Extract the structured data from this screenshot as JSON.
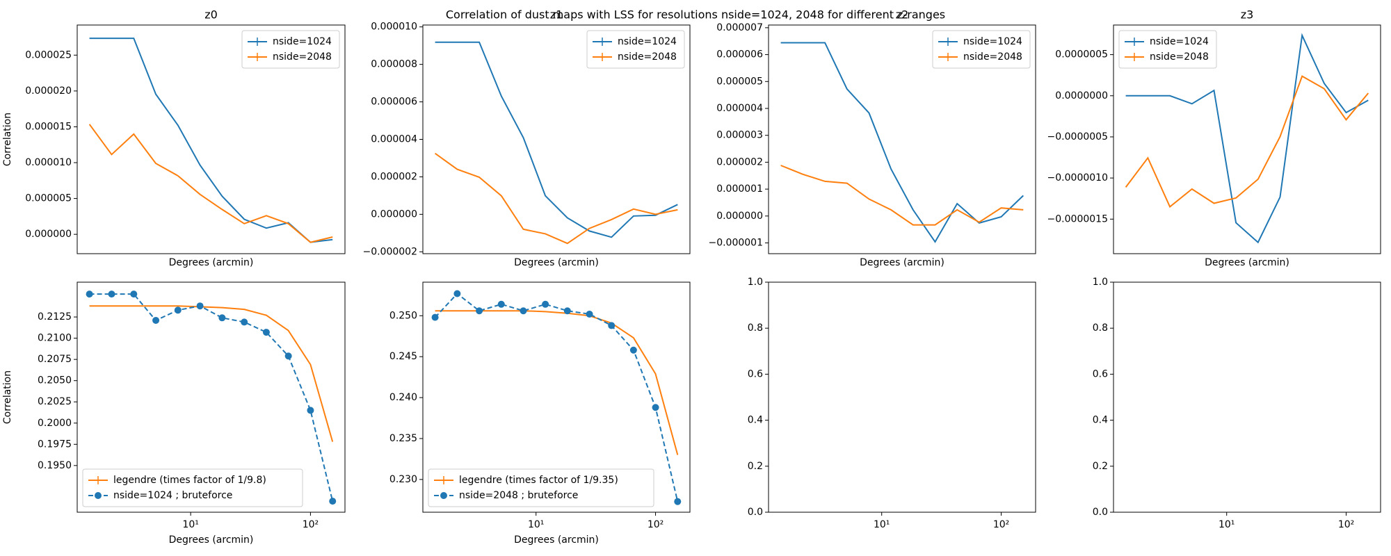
{
  "title": "Correlation of dust maps with LSS for resolutions nside=1024, 2048 for different z-ranges",
  "chart_data": [
    {
      "type": "line",
      "title": "z0",
      "xlabel": "Degrees (arcmin)",
      "ylabel": "Correlation",
      "xscale": "log",
      "xlim": [
        1.13,
        194
      ],
      "ylim": [
        -2.7e-06,
        2.92e-05
      ],
      "legend": "upper right",
      "yticks": [
        {
          "value": 0,
          "label": "0.000000"
        },
        {
          "value": 5e-06,
          "label": "0.000005"
        },
        {
          "value": 1e-05,
          "label": "0.000010"
        },
        {
          "value": 1.5e-05,
          "label": "0.000015"
        },
        {
          "value": 2e-05,
          "label": "0.000020"
        },
        {
          "value": 2.5e-05,
          "label": "0.000025"
        }
      ],
      "x": [
        1.43,
        2.19,
        3.35,
        5.12,
        7.83,
        11.97,
        18.3,
        28.0,
        42.8,
        65.4,
        100,
        153
      ],
      "series": [
        {
          "name": "nside=1024",
          "color": "#1f77b4",
          "values": [
            2.735e-05,
            2.735e-05,
            2.735e-05,
            1.955e-05,
            1.522e-05,
            9.65e-06,
            5.32e-06,
            2.1e-06,
            8.7e-07,
            1.61e-06,
            -1.11e-06,
            -7.4e-07
          ]
        },
        {
          "name": "nside=2048",
          "color": "#ff7f0e",
          "values": [
            1.535e-05,
            1.114e-05,
            1.399e-05,
            9.9e-06,
            8.17e-06,
            5.57e-06,
            3.47e-06,
            1.49e-06,
            2.6e-06,
            1.49e-06,
            -1.11e-06,
            -3.7e-07
          ]
        }
      ]
    },
    {
      "type": "line",
      "title": "z1",
      "xlabel": "Degrees (arcmin)",
      "xscale": "log",
      "xlim": [
        1.13,
        194
      ],
      "ylim": [
        -2.1e-06,
        1.01e-05
      ],
      "legend": "upper right",
      "yticks": [
        {
          "value": -2e-06,
          "label": "−0.000002"
        },
        {
          "value": 0,
          "label": "0.000000"
        },
        {
          "value": 2e-06,
          "label": "0.000002"
        },
        {
          "value": 4e-06,
          "label": "0.000004"
        },
        {
          "value": 6e-06,
          "label": "0.000006"
        },
        {
          "value": 8e-06,
          "label": "0.000008"
        },
        {
          "value": 1e-05,
          "label": "0.000010"
        }
      ],
      "x": [
        1.43,
        2.19,
        3.35,
        5.12,
        7.83,
        11.97,
        18.3,
        28.0,
        42.8,
        65.4,
        100,
        153
      ],
      "series": [
        {
          "name": "nside=1024",
          "color": "#1f77b4",
          "values": [
            9.18e-06,
            9.18e-06,
            9.18e-06,
            6.31e-06,
            4.09e-06,
            9.9e-07,
            -1.9e-07,
            -8.9e-07,
            -1.22e-06,
            -9e-08,
            -5e-08,
            5.2e-07
          ]
        },
        {
          "name": "nside=2048",
          "color": "#ff7f0e",
          "values": [
            3.25e-06,
            2.4e-06,
            1.98e-06,
            9.9e-07,
            -8e-07,
            -1.04e-06,
            -1.55e-06,
            -7.5e-07,
            -2.8e-07,
            2.8e-07,
            0,
            2.4e-07
          ]
        }
      ]
    },
    {
      "type": "line",
      "title": "z2",
      "xlabel": "Degrees (arcmin)",
      "xscale": "log",
      "xlim": [
        1.13,
        194
      ],
      "ylim": [
        -1.4e-06,
        7.1e-06
      ],
      "legend": "upper right",
      "yticks": [
        {
          "value": -1e-06,
          "label": "−0.000001"
        },
        {
          "value": 0,
          "label": "0.000000"
        },
        {
          "value": 1e-06,
          "label": "0.000001"
        },
        {
          "value": 2e-06,
          "label": "0.000002"
        },
        {
          "value": 3e-06,
          "label": "0.000003"
        },
        {
          "value": 4e-06,
          "label": "0.000004"
        },
        {
          "value": 5e-06,
          "label": "0.000005"
        },
        {
          "value": 6e-06,
          "label": "0.000006"
        },
        {
          "value": 7e-06,
          "label": "0.000007"
        }
      ],
      "x": [
        1.43,
        2.19,
        3.35,
        5.12,
        7.83,
        11.97,
        18.3,
        28.0,
        42.8,
        65.4,
        100,
        153
      ],
      "series": [
        {
          "name": "nside=1024",
          "color": "#1f77b4",
          "values": [
            6.44e-06,
            6.44e-06,
            6.44e-06,
            4.72e-06,
            3.83e-06,
            1.75e-06,
            2.3e-07,
            -9.6e-07,
            4.6e-07,
            -2.6e-07,
            -3e-08,
            7.6e-07
          ]
        },
        {
          "name": "nside=2048",
          "color": "#ff7f0e",
          "values": [
            1.88e-06,
            1.55e-06,
            1.29e-06,
            1.22e-06,
            6.3e-07,
            2.3e-07,
            -3.3e-07,
            -3.3e-07,
            2.3e-07,
            -2.3e-07,
            3e-07,
            2.3e-07
          ]
        }
      ]
    },
    {
      "type": "line",
      "title": "z3",
      "xlabel": "Degrees (arcmin)",
      "xscale": "log",
      "xlim": [
        1.13,
        194
      ],
      "ylim": [
        -1.92e-06,
        8.6e-07
      ],
      "legend": "upper left",
      "yticks": [
        {
          "value": -1.5e-06,
          "label": "−0.0000015"
        },
        {
          "value": -1e-06,
          "label": "−0.0000010"
        },
        {
          "value": -5e-07,
          "label": "−0.0000005"
        },
        {
          "value": 0,
          "label": "0.0000000"
        },
        {
          "value": 5e-07,
          "label": "0.0000005"
        }
      ],
      "x": [
        1.43,
        2.19,
        3.35,
        5.12,
        7.83,
        11.97,
        18.3,
        28.0,
        42.8,
        65.4,
        100,
        153
      ],
      "series": [
        {
          "name": "nside=1024",
          "color": "#1f77b4",
          "values": [
            0,
            0,
            0,
            -9.7e-08,
            6.5e-08,
            -1.544e-06,
            -1.782e-06,
            -1.231e-06,
            7.34e-07,
            1.51e-07,
            -2.05e-07,
            -5.4e-08
          ]
        },
        {
          "name": "nside=2048",
          "color": "#ff7f0e",
          "values": [
            -1.112e-06,
            -7.56e-07,
            -1.35e-06,
            -1.134e-06,
            -1.307e-06,
            -1.242e-06,
            -1.015e-06,
            -4.97e-07,
            2.38e-07,
            8.6e-08,
            -2.92e-07,
            3.2e-08
          ]
        }
      ]
    },
    {
      "type": "line",
      "xlabel": "Degrees (arcmin)",
      "ylabel": "Correlation",
      "xscale": "log",
      "xlim": [
        1.13,
        194
      ],
      "ylim": [
        0.1895,
        0.2166
      ],
      "legend": "lower left",
      "xticks": [
        {
          "value": 10,
          "label": "10¹"
        },
        {
          "value": 100,
          "label": "10²"
        }
      ],
      "yticks": [
        {
          "value": 0.195,
          "label": "0.1950"
        },
        {
          "value": 0.1975,
          "label": "0.1975"
        },
        {
          "value": 0.2,
          "label": "0.2000"
        },
        {
          "value": 0.2025,
          "label": "0.2025"
        },
        {
          "value": 0.205,
          "label": "0.2050"
        },
        {
          "value": 0.2075,
          "label": "0.2075"
        },
        {
          "value": 0.21,
          "label": "0.2100"
        },
        {
          "value": 0.2125,
          "label": "0.2125"
        }
      ],
      "x": [
        1.43,
        2.19,
        3.35,
        5.12,
        7.83,
        11.97,
        18.3,
        28.0,
        42.8,
        65.4,
        100,
        153
      ],
      "series": [
        {
          "name": "legendre (times factor of 1/9.8)",
          "color": "#ff7f0e",
          "values": [
            0.2138,
            0.2138,
            0.2138,
            0.2138,
            0.2138,
            0.2137,
            0.2136,
            0.2134,
            0.2127,
            0.2109,
            0.2069,
            0.1978
          ]
        },
        {
          "name": "nside=1024 ; bruteforce",
          "color": "#1f77b4",
          "dashed": true,
          "marker": "o",
          "values": [
            0.2152,
            0.2152,
            0.2152,
            0.2121,
            0.2133,
            0.2138,
            0.2124,
            0.2119,
            0.2107,
            0.2079,
            0.2015,
            0.1908
          ]
        }
      ]
    },
    {
      "type": "line",
      "xlabel": "Degrees (arcmin)",
      "xscale": "log",
      "xlim": [
        1.13,
        194
      ],
      "ylim": [
        0.226,
        0.2541
      ],
      "legend": "lower left",
      "xticks": [
        {
          "value": 10,
          "label": "10¹"
        },
        {
          "value": 100,
          "label": "10²"
        }
      ],
      "yticks": [
        {
          "value": 0.23,
          "label": "0.230"
        },
        {
          "value": 0.235,
          "label": "0.235"
        },
        {
          "value": 0.24,
          "label": "0.240"
        },
        {
          "value": 0.245,
          "label": "0.245"
        },
        {
          "value": 0.25,
          "label": "0.250"
        }
      ],
      "x": [
        1.43,
        2.19,
        3.35,
        5.12,
        7.83,
        11.97,
        18.3,
        28.0,
        42.8,
        65.4,
        100,
        153
      ],
      "series": [
        {
          "name": "legendre (times factor of 1/9.35)",
          "color": "#ff7f0e",
          "values": [
            0.2506,
            0.2506,
            0.2506,
            0.2506,
            0.2506,
            0.2505,
            0.2503,
            0.25,
            0.2491,
            0.2473,
            0.2429,
            0.233
          ]
        },
        {
          "name": "nside=2048 ; bruteforce",
          "color": "#1f77b4",
          "dashed": true,
          "marker": "o",
          "values": [
            0.2498,
            0.2527,
            0.2506,
            0.2514,
            0.2506,
            0.2514,
            0.2506,
            0.2502,
            0.2488,
            0.2458,
            0.2388,
            0.2273
          ]
        }
      ]
    },
    {
      "type": "line",
      "xscale": "log",
      "xlim": [
        1.13,
        194
      ],
      "ylim": [
        0,
        1
      ],
      "xticks": [
        {
          "value": 10,
          "label": "10¹"
        },
        {
          "value": 100,
          "label": "10²"
        }
      ],
      "yticks": [
        {
          "value": 0,
          "label": "0.0"
        },
        {
          "value": 0.2,
          "label": "0.2"
        },
        {
          "value": 0.4,
          "label": "0.4"
        },
        {
          "value": 0.6,
          "label": "0.6"
        },
        {
          "value": 0.8,
          "label": "0.8"
        },
        {
          "value": 1,
          "label": "1.0"
        }
      ],
      "series": []
    },
    {
      "type": "line",
      "xscale": "log",
      "xlim": [
        1.13,
        194
      ],
      "ylim": [
        0,
        1
      ],
      "xticks": [
        {
          "value": 10,
          "label": "10¹"
        },
        {
          "value": 100,
          "label": "10²"
        }
      ],
      "yticks": [
        {
          "value": 0,
          "label": "0.0"
        },
        {
          "value": 0.2,
          "label": "0.2"
        },
        {
          "value": 0.4,
          "label": "0.4"
        },
        {
          "value": 0.6,
          "label": "0.6"
        },
        {
          "value": 0.8,
          "label": "0.8"
        },
        {
          "value": 1,
          "label": "1.0"
        }
      ],
      "series": []
    }
  ]
}
